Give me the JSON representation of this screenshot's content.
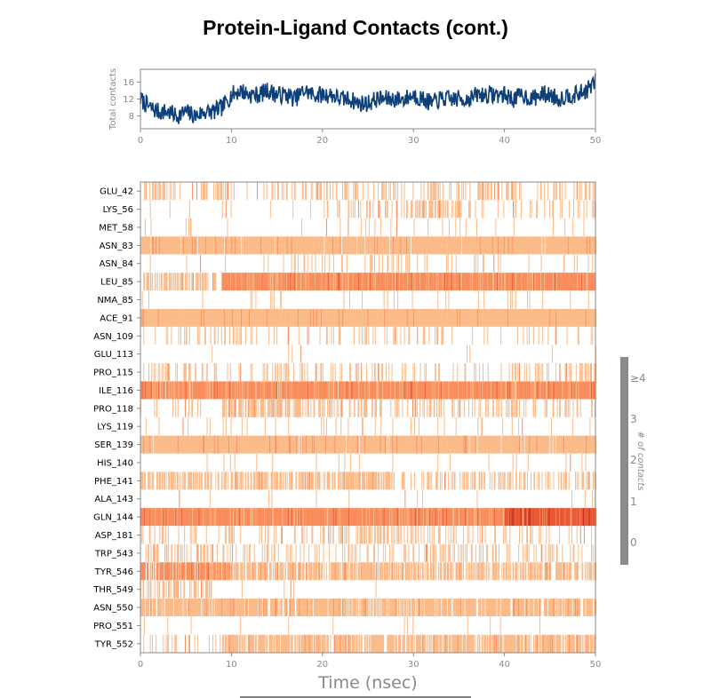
{
  "title": "Protein-Ligand Contacts (cont.)",
  "colors": {
    "line": "#0d3f78",
    "contact_1": "#fbb986",
    "contact_2": "#f98a58",
    "contact_3": "#e8532e",
    "contact_4": "#b9200f",
    "axis": "#8a8a8a",
    "colorbar": "#8a8a8a"
  },
  "chart_data": [
    {
      "type": "line",
      "name": "total-contacts",
      "ylabel": "Total contacts",
      "xlim": [
        0,
        50
      ],
      "ylim": [
        5,
        19
      ],
      "yticks": [
        8,
        12,
        16
      ],
      "xticks": [
        0,
        10,
        20,
        30,
        40,
        50
      ],
      "x": [
        0,
        1,
        2,
        3,
        4,
        5,
        6,
        7,
        8,
        9,
        10,
        11,
        12,
        13,
        14,
        15,
        16,
        17,
        18,
        19,
        20,
        21,
        22,
        23,
        24,
        25,
        26,
        27,
        28,
        29,
        30,
        31,
        32,
        33,
        34,
        35,
        36,
        37,
        38,
        39,
        40,
        41,
        42,
        43,
        44,
        45,
        46,
        47,
        48,
        49,
        50
      ],
      "y": [
        12,
        10,
        9,
        9,
        8,
        9,
        8,
        9,
        9,
        10,
        13,
        14,
        13,
        13,
        14,
        13,
        13,
        12,
        14,
        13,
        13,
        13,
        12,
        12,
        11,
        11,
        12,
        12,
        12,
        12,
        13,
        12,
        11,
        12,
        12,
        12,
        12,
        13,
        13,
        13,
        13,
        12,
        13,
        12,
        13,
        13,
        12,
        13,
        13,
        14,
        16
      ]
    },
    {
      "type": "heatmap",
      "name": "contact-timeline",
      "xlabel": "Time (nsec)",
      "xlim": [
        0,
        50
      ],
      "xticks": [
        0,
        10,
        20,
        30,
        40,
        50
      ],
      "colorbar": {
        "label": "# of contacts",
        "ticks": [
          "0",
          "1",
          "2",
          "3",
          "≥4"
        ]
      },
      "residues": [
        {
          "name": "GLU_42",
          "segments": [
            [
              0,
              4,
              0.45
            ],
            [
              4,
              10,
              0.2
            ],
            [
              10,
              12,
              0.15
            ],
            [
              12,
              30,
              0.3
            ],
            [
              30,
              38,
              0.35
            ],
            [
              38,
              50,
              0.3
            ]
          ]
        },
        {
          "name": "LYS_56",
          "segments": [
            [
              0,
              20,
              0.03
            ],
            [
              20,
              28,
              0.25
            ],
            [
              28,
              32,
              0.5
            ],
            [
              32,
              35,
              0.25
            ],
            [
              35,
              50,
              0.15
            ]
          ]
        },
        {
          "name": "MET_58",
          "segments": [
            [
              0,
              8,
              0.08
            ],
            [
              8,
              25,
              0.04
            ],
            [
              25,
              50,
              0.04
            ]
          ]
        },
        {
          "name": "ASN_83",
          "segments": [
            [
              0,
              50,
              0.97,
              1
            ]
          ]
        },
        {
          "name": "ASN_84",
          "segments": [
            [
              0,
              14,
              0.02
            ],
            [
              14,
              20,
              0.15
            ],
            [
              20,
              30,
              0.12
            ],
            [
              30,
              45,
              0.08
            ],
            [
              45,
              50,
              0.05
            ]
          ]
        },
        {
          "name": "LEU_85",
          "segments": [
            [
              0,
              9,
              0.6
            ],
            [
              9,
              50,
              1.0,
              2
            ]
          ]
        },
        {
          "name": "NMA_85",
          "segments": [
            [
              0,
              50,
              0.04
            ]
          ]
        },
        {
          "name": "ACE_91",
          "segments": [
            [
              0,
              50,
              1.0,
              1
            ]
          ]
        },
        {
          "name": "ASN_109",
          "segments": [
            [
              0,
              10,
              0.2
            ],
            [
              10,
              20,
              0.12
            ],
            [
              20,
              35,
              0.2
            ],
            [
              35,
              50,
              0.1
            ]
          ]
        },
        {
          "name": "GLU_113",
          "segments": [
            [
              0,
              50,
              0.02
            ]
          ]
        },
        {
          "name": "PRO_115",
          "segments": [
            [
              0,
              6,
              0.4
            ],
            [
              6,
              20,
              0.25
            ],
            [
              20,
              40,
              0.2
            ],
            [
              40,
              50,
              0.35
            ]
          ]
        },
        {
          "name": "ILE_116",
          "segments": [
            [
              0,
              50,
              0.98,
              2
            ]
          ]
        },
        {
          "name": "PRO_118",
          "segments": [
            [
              0,
              9,
              0.08
            ],
            [
              9,
              21,
              0.6
            ],
            [
              21,
              40,
              0.3
            ],
            [
              40,
              50,
              0.25
            ]
          ]
        },
        {
          "name": "LYS_119",
          "segments": [
            [
              0,
              50,
              0.07
            ]
          ]
        },
        {
          "name": "SER_139",
          "segments": [
            [
              0,
              50,
              0.95,
              1
            ]
          ]
        },
        {
          "name": "HIS_140",
          "segments": [
            [
              0,
              50,
              0.03
            ]
          ]
        },
        {
          "name": "PHE_141",
          "segments": [
            [
              0,
              22,
              0.6
            ],
            [
              22,
              28,
              0.8
            ],
            [
              28,
              31,
              0.1
            ],
            [
              31,
              40,
              0.35
            ],
            [
              40,
              50,
              0.4
            ]
          ]
        },
        {
          "name": "ALA_143",
          "segments": [
            [
              0,
              50,
              0.03
            ]
          ]
        },
        {
          "name": "GLN_144",
          "segments": [
            [
              0,
              40,
              1.0,
              2
            ],
            [
              40,
              50,
              1.0,
              3
            ]
          ]
        },
        {
          "name": "ASP_181",
          "segments": [
            [
              0,
              20,
              0.15
            ],
            [
              20,
              32,
              0.4
            ],
            [
              32,
              50,
              0.2
            ]
          ]
        },
        {
          "name": "TRP_543",
          "segments": [
            [
              0,
              10,
              0.3
            ],
            [
              10,
              30,
              0.2
            ],
            [
              30,
              50,
              0.3
            ]
          ]
        },
        {
          "name": "TYR_546",
          "segments": [
            [
              0,
              10,
              0.8,
              2
            ],
            [
              10,
              30,
              0.75
            ],
            [
              30,
              50,
              0.6
            ]
          ]
        },
        {
          "name": "THR_549",
          "segments": [
            [
              0,
              8,
              0.5
            ],
            [
              8,
              50,
              0.01
            ]
          ]
        },
        {
          "name": "ASN_550",
          "segments": [
            [
              0,
              50,
              0.85,
              1
            ]
          ]
        },
        {
          "name": "PRO_551",
          "segments": [
            [
              0,
              50,
              0.04
            ]
          ]
        },
        {
          "name": "TYR_552",
          "segments": [
            [
              0,
              9,
              0.15
            ],
            [
              9,
              50,
              0.75
            ]
          ]
        }
      ]
    }
  ]
}
